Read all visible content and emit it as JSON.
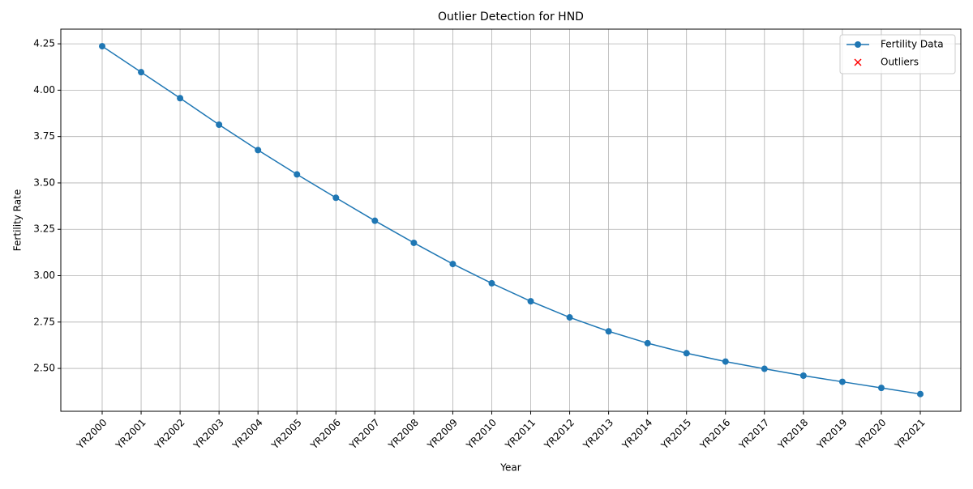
{
  "chart_data": {
    "type": "line",
    "title": "Outlier Detection for HND",
    "xlabel": "Year",
    "ylabel": "Fertility Rate",
    "categories": [
      "YR2000",
      "YR2001",
      "YR2002",
      "YR2003",
      "YR2004",
      "YR2005",
      "YR2006",
      "YR2007",
      "YR2008",
      "YR2009",
      "YR2010",
      "YR2011",
      "YR2012",
      "YR2013",
      "YR2014",
      "YR2015",
      "YR2016",
      "YR2017",
      "YR2018",
      "YR2019",
      "YR2020",
      "YR2021"
    ],
    "series": [
      {
        "name": "Fertility Data",
        "color": "#1f77b4",
        "values": [
          4.237,
          4.097,
          3.957,
          3.814,
          3.677,
          3.546,
          3.42,
          3.296,
          3.177,
          3.063,
          2.959,
          2.862,
          2.775,
          2.7,
          2.636,
          2.582,
          2.537,
          2.498,
          2.461,
          2.428,
          2.395,
          2.362
        ]
      },
      {
        "name": "Outliers",
        "color": "#ff0000",
        "values": [
          null,
          null,
          null,
          null,
          null,
          null,
          null,
          null,
          null,
          null,
          null,
          null,
          null,
          null,
          null,
          null,
          null,
          null,
          null,
          null,
          null,
          null
        ]
      }
    ],
    "ylim": [
      2.269,
      4.329
    ],
    "yticks": [
      {
        "value": 2.5,
        "label": "2.50"
      },
      2.75,
      {
        "value": 3.0,
        "label": "3.00"
      },
      3.25,
      {
        "value": 3.5,
        "label": "3.50"
      },
      3.75,
      {
        "value": 4.0,
        "label": "4.00"
      },
      4.25
    ],
    "grid": true,
    "legend": "upper right"
  }
}
